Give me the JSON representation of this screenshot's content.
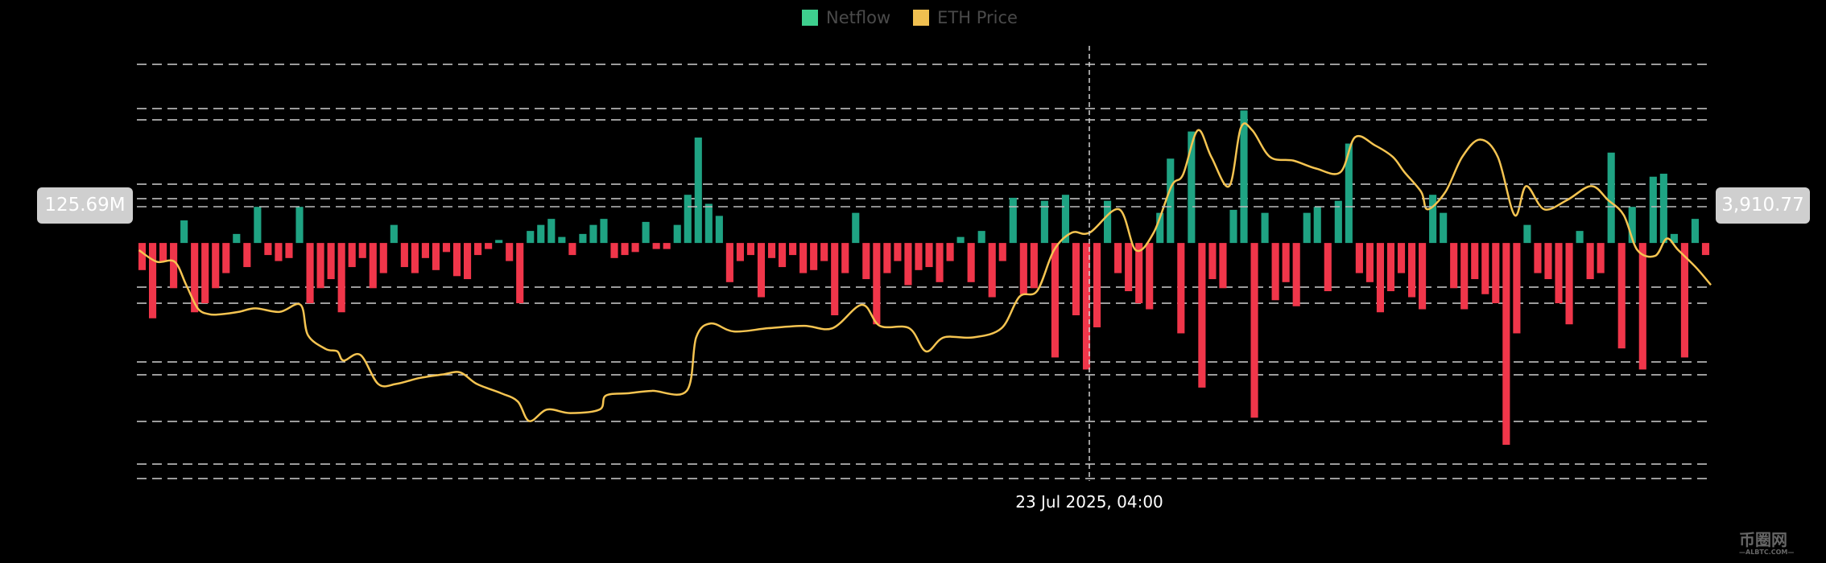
{
  "chart_data": {
    "type": "bar+line",
    "title": "",
    "legend": {
      "position": "top-center",
      "entries": [
        {
          "name": "Netflow",
          "color": "#3ecf8e"
        },
        {
          "name": "ETH Price",
          "color": "#f0c050"
        }
      ]
    },
    "colors": {
      "positive": "#1fa383",
      "negative": "#f0364a",
      "price": "#f5c451",
      "grid": "#d0d0d0"
    },
    "grid": true,
    "netflow_ylim_millions": [
      -782,
      593
    ],
    "price_ylim": [
      2757,
      4509
    ],
    "crosshair": {
      "x_label": "23 Jul 2025, 04:00",
      "netflow_label": "125.69M",
      "price_label": "3,910.77",
      "bar_index": 90.8,
      "netflow_value_millions": 125.69,
      "price_value": 3910.77
    },
    "netflow_millions": [
      -90,
      -250,
      -60,
      -150,
      75,
      -230,
      -200,
      -150,
      -100,
      30,
      -80,
      120,
      -40,
      -60,
      -50,
      120,
      -200,
      -150,
      -120,
      -230,
      -80,
      -50,
      -150,
      -100,
      60,
      -80,
      -100,
      -50,
      -90,
      -30,
      -110,
      -120,
      -40,
      -20,
      10,
      -60,
      -200,
      40,
      60,
      80,
      20,
      -40,
      30,
      60,
      80,
      -50,
      -40,
      -30,
      70,
      -20,
      -20,
      60,
      160,
      350,
      130,
      90,
      -130,
      -60,
      -40,
      -180,
      -50,
      -80,
      -40,
      -100,
      -90,
      -60,
      -240,
      -100,
      100,
      -120,
      -270,
      -100,
      -60,
      -140,
      -90,
      -80,
      -130,
      -60,
      20,
      -130,
      40,
      -180,
      -60,
      150,
      -170,
      -150,
      140,
      -380,
      160,
      -240,
      -420,
      -280,
      140,
      -100,
      -160,
      -200,
      -220,
      100,
      280,
      -300,
      370,
      -480,
      -120,
      -150,
      110,
      440,
      -580,
      100,
      -190,
      -130,
      -210,
      100,
      120,
      -160,
      140,
      330,
      -100,
      -130,
      -230,
      -160,
      -100,
      -180,
      -220,
      160,
      100,
      -150,
      -220,
      -120,
      -170,
      -200,
      -670,
      -300,
      60,
      -100,
      -120,
      -200,
      -270,
      40,
      -120,
      -100,
      300,
      -350,
      120,
      -420,
      220,
      230,
      30,
      -380,
      80,
      -40
    ],
    "price_series": [
      [
        0.2,
        3723
      ],
      [
        1.9,
        3674
      ],
      [
        3.6,
        3674
      ],
      [
        4.7,
        3576
      ],
      [
        5.8,
        3477
      ],
      [
        6.9,
        3452
      ],
      [
        8,
        3452
      ],
      [
        9.7,
        3462
      ],
      [
        11.3,
        3477
      ],
      [
        13.6,
        3462
      ],
      [
        15.6,
        3492
      ],
      [
        16.3,
        3364
      ],
      [
        18,
        3305
      ],
      [
        19.1,
        3295
      ],
      [
        19.7,
        3256
      ],
      [
        21.3,
        3280
      ],
      [
        23,
        3157
      ],
      [
        24.7,
        3157
      ],
      [
        26.9,
        3182
      ],
      [
        29.1,
        3197
      ],
      [
        30.8,
        3206
      ],
      [
        32.4,
        3157
      ],
      [
        34.7,
        3118
      ],
      [
        36.3,
        3083
      ],
      [
        37.4,
        3000
      ],
      [
        39.1,
        3049
      ],
      [
        41.3,
        3034
      ],
      [
        44.1,
        3049
      ],
      [
        44.7,
        3108
      ],
      [
        46.9,
        3118
      ],
      [
        49.1,
        3128
      ],
      [
        52.4,
        3128
      ],
      [
        53.3,
        3354
      ],
      [
        54.7,
        3413
      ],
      [
        56.9,
        3379
      ],
      [
        60.2,
        3393
      ],
      [
        63.6,
        3403
      ],
      [
        66.3,
        3393
      ],
      [
        69.1,
        3492
      ],
      [
        70.8,
        3403
      ],
      [
        73.6,
        3393
      ],
      [
        75.2,
        3295
      ],
      [
        76.9,
        3354
      ],
      [
        79.7,
        3354
      ],
      [
        82.4,
        3393
      ],
      [
        84.1,
        3526
      ],
      [
        85.8,
        3551
      ],
      [
        87.4,
        3723
      ],
      [
        89.1,
        3797
      ],
      [
        90.8,
        3797
      ],
      [
        93.6,
        3896
      ],
      [
        95.2,
        3723
      ],
      [
        96.9,
        3797
      ],
      [
        98.6,
        3994
      ],
      [
        99.7,
        4043
      ],
      [
        101.1,
        4230
      ],
      [
        102.4,
        4117
      ],
      [
        104.1,
        3994
      ],
      [
        105.2,
        4240
      ],
      [
        106.3,
        4230
      ],
      [
        108,
        4117
      ],
      [
        110.2,
        4102
      ],
      [
        112.4,
        4068
      ],
      [
        114.7,
        4053
      ],
      [
        116.1,
        4201
      ],
      [
        118,
        4166
      ],
      [
        119.7,
        4117
      ],
      [
        120.8,
        4053
      ],
      [
        122.4,
        3969
      ],
      [
        123,
        3896
      ],
      [
        124.7,
        3969
      ],
      [
        126.3,
        4117
      ],
      [
        128,
        4191
      ],
      [
        129.7,
        4117
      ],
      [
        131.3,
        3871
      ],
      [
        132.4,
        3994
      ],
      [
        134.1,
        3896
      ],
      [
        136.3,
        3935
      ],
      [
        138.6,
        3994
      ],
      [
        140.2,
        3935
      ],
      [
        141.7,
        3871
      ],
      [
        143,
        3723
      ],
      [
        144.7,
        3699
      ],
      [
        145.8,
        3772
      ],
      [
        146.9,
        3723
      ],
      [
        148.6,
        3649
      ],
      [
        150,
        3576
      ]
    ]
  },
  "watermark": {
    "name": "币圈网",
    "sub": "ALBTC.COM"
  }
}
